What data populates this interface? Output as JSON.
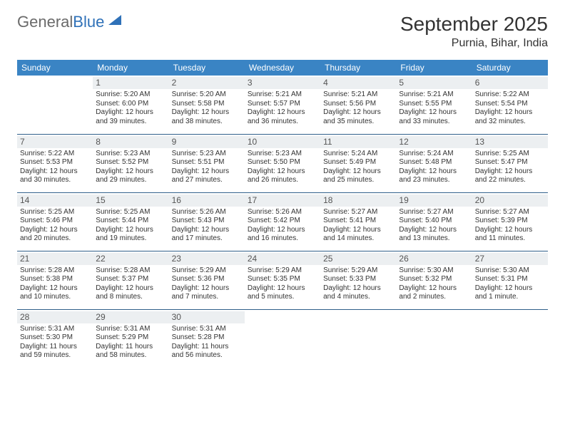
{
  "logo": {
    "part1": "General",
    "part2": "Blue"
  },
  "title": "September 2025",
  "location": "Purnia, Bihar, India",
  "colors": {
    "header_bg": "#3a84c4",
    "header_text": "#ffffff",
    "daynum_bg": "#eceff1",
    "row_divider": "#2f5f8a",
    "logo_gray": "#6a6a6a",
    "logo_blue": "#2f71b8",
    "body_text": "#333333",
    "page_bg": "#ffffff"
  },
  "weekdays": [
    "Sunday",
    "Monday",
    "Tuesday",
    "Wednesday",
    "Thursday",
    "Friday",
    "Saturday"
  ],
  "start_weekday_index": 1,
  "days": [
    {
      "n": 1,
      "sunrise": "5:20 AM",
      "sunset": "6:00 PM",
      "daylight": "12 hours and 39 minutes."
    },
    {
      "n": 2,
      "sunrise": "5:20 AM",
      "sunset": "5:58 PM",
      "daylight": "12 hours and 38 minutes."
    },
    {
      "n": 3,
      "sunrise": "5:21 AM",
      "sunset": "5:57 PM",
      "daylight": "12 hours and 36 minutes."
    },
    {
      "n": 4,
      "sunrise": "5:21 AM",
      "sunset": "5:56 PM",
      "daylight": "12 hours and 35 minutes."
    },
    {
      "n": 5,
      "sunrise": "5:21 AM",
      "sunset": "5:55 PM",
      "daylight": "12 hours and 33 minutes."
    },
    {
      "n": 6,
      "sunrise": "5:22 AM",
      "sunset": "5:54 PM",
      "daylight": "12 hours and 32 minutes."
    },
    {
      "n": 7,
      "sunrise": "5:22 AM",
      "sunset": "5:53 PM",
      "daylight": "12 hours and 30 minutes."
    },
    {
      "n": 8,
      "sunrise": "5:23 AM",
      "sunset": "5:52 PM",
      "daylight": "12 hours and 29 minutes."
    },
    {
      "n": 9,
      "sunrise": "5:23 AM",
      "sunset": "5:51 PM",
      "daylight": "12 hours and 27 minutes."
    },
    {
      "n": 10,
      "sunrise": "5:23 AM",
      "sunset": "5:50 PM",
      "daylight": "12 hours and 26 minutes."
    },
    {
      "n": 11,
      "sunrise": "5:24 AM",
      "sunset": "5:49 PM",
      "daylight": "12 hours and 25 minutes."
    },
    {
      "n": 12,
      "sunrise": "5:24 AM",
      "sunset": "5:48 PM",
      "daylight": "12 hours and 23 minutes."
    },
    {
      "n": 13,
      "sunrise": "5:25 AM",
      "sunset": "5:47 PM",
      "daylight": "12 hours and 22 minutes."
    },
    {
      "n": 14,
      "sunrise": "5:25 AM",
      "sunset": "5:46 PM",
      "daylight": "12 hours and 20 minutes."
    },
    {
      "n": 15,
      "sunrise": "5:25 AM",
      "sunset": "5:44 PM",
      "daylight": "12 hours and 19 minutes."
    },
    {
      "n": 16,
      "sunrise": "5:26 AM",
      "sunset": "5:43 PM",
      "daylight": "12 hours and 17 minutes."
    },
    {
      "n": 17,
      "sunrise": "5:26 AM",
      "sunset": "5:42 PM",
      "daylight": "12 hours and 16 minutes."
    },
    {
      "n": 18,
      "sunrise": "5:27 AM",
      "sunset": "5:41 PM",
      "daylight": "12 hours and 14 minutes."
    },
    {
      "n": 19,
      "sunrise": "5:27 AM",
      "sunset": "5:40 PM",
      "daylight": "12 hours and 13 minutes."
    },
    {
      "n": 20,
      "sunrise": "5:27 AM",
      "sunset": "5:39 PM",
      "daylight": "12 hours and 11 minutes."
    },
    {
      "n": 21,
      "sunrise": "5:28 AM",
      "sunset": "5:38 PM",
      "daylight": "12 hours and 10 minutes."
    },
    {
      "n": 22,
      "sunrise": "5:28 AM",
      "sunset": "5:37 PM",
      "daylight": "12 hours and 8 minutes."
    },
    {
      "n": 23,
      "sunrise": "5:29 AM",
      "sunset": "5:36 PM",
      "daylight": "12 hours and 7 minutes."
    },
    {
      "n": 24,
      "sunrise": "5:29 AM",
      "sunset": "5:35 PM",
      "daylight": "12 hours and 5 minutes."
    },
    {
      "n": 25,
      "sunrise": "5:29 AM",
      "sunset": "5:33 PM",
      "daylight": "12 hours and 4 minutes."
    },
    {
      "n": 26,
      "sunrise": "5:30 AM",
      "sunset": "5:32 PM",
      "daylight": "12 hours and 2 minutes."
    },
    {
      "n": 27,
      "sunrise": "5:30 AM",
      "sunset": "5:31 PM",
      "daylight": "12 hours and 1 minute."
    },
    {
      "n": 28,
      "sunrise": "5:31 AM",
      "sunset": "5:30 PM",
      "daylight": "11 hours and 59 minutes."
    },
    {
      "n": 29,
      "sunrise": "5:31 AM",
      "sunset": "5:29 PM",
      "daylight": "11 hours and 58 minutes."
    },
    {
      "n": 30,
      "sunrise": "5:31 AM",
      "sunset": "5:28 PM",
      "daylight": "11 hours and 56 minutes."
    }
  ],
  "labels": {
    "sunrise_prefix": "Sunrise: ",
    "sunset_prefix": "Sunset: ",
    "daylight_prefix": "Daylight: "
  },
  "typography": {
    "month_title_size": 28,
    "location_size": 16,
    "weekday_header_size": 12,
    "daynum_size": 12,
    "cell_text_size": 10
  }
}
